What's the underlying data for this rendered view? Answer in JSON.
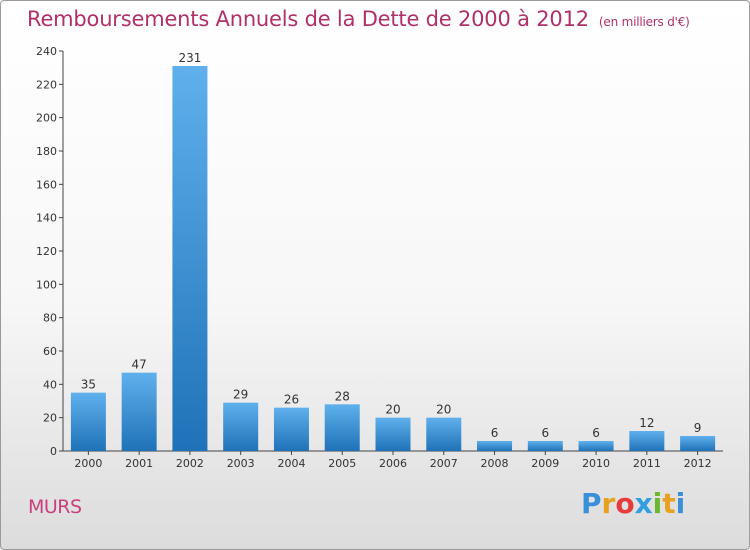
{
  "title": "Remboursements Annuels de la Dette de 2000 à 2012",
  "subtitle": "(en milliers d'€)",
  "commune": "MURS",
  "logo": {
    "letters": [
      "P",
      "r",
      "o",
      "x",
      "i",
      "t",
      "i"
    ],
    "colors": [
      "#3a8fd8",
      "#e8a020",
      "#e53b3b",
      "#2f9fe0",
      "#6ab82e",
      "#e8a020",
      "#3a8fd8"
    ]
  },
  "chart_data": {
    "type": "bar",
    "title": "Remboursements Annuels de la Dette de 2000 à 2012",
    "subtitle": "(en milliers d'€)",
    "xlabel": "",
    "ylabel": "",
    "categories": [
      "2000",
      "2001",
      "2002",
      "2003",
      "2004",
      "2005",
      "2006",
      "2007",
      "2008",
      "2009",
      "2010",
      "2011",
      "2012"
    ],
    "values": [
      35,
      47,
      231,
      29,
      26,
      28,
      20,
      20,
      6,
      6,
      6,
      12,
      9
    ],
    "ylim": [
      0,
      240
    ],
    "yticks": [
      0,
      20,
      40,
      60,
      80,
      100,
      120,
      140,
      160,
      180,
      200,
      220,
      240
    ],
    "grid": false,
    "bar_color": "#2b86cc"
  }
}
